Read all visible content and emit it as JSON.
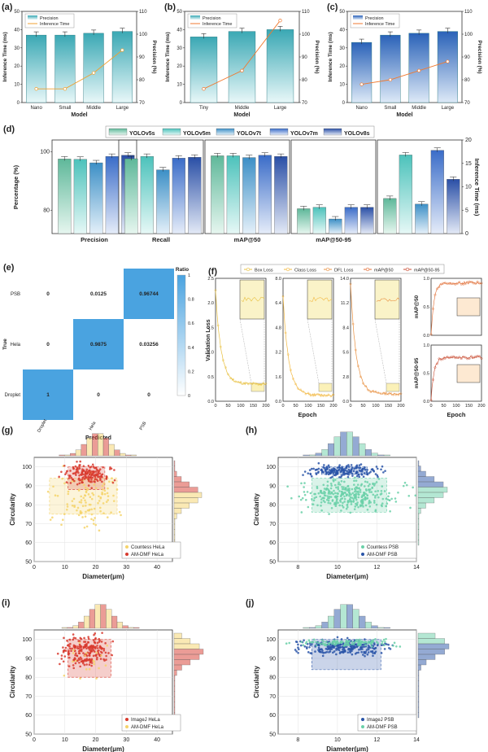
{
  "palette": {
    "bar_blue": "#3d7ec4",
    "bar_teal": "#3aa8b4",
    "bar_light": "#d6eef2",
    "line_orange": "#f0a030",
    "yellow": "#f5d36a",
    "red": "#d83a2e",
    "green": "#6ad0a8",
    "navy": "#2a55a8",
    "heat": "#4aa3e0"
  },
  "panels": {
    "a": {
      "letter": "(a)"
    },
    "b": {
      "letter": "(b)"
    },
    "c": {
      "letter": "(c)"
    },
    "d": {
      "letter": "(d)"
    },
    "e": {
      "letter": "(e)"
    },
    "f": {
      "letter": "(f)"
    },
    "g": {
      "letter": "(g)"
    },
    "h": {
      "letter": "(h)"
    },
    "i": {
      "letter": "(i)"
    },
    "j": {
      "letter": "(j)"
    }
  },
  "chart_data": [
    {
      "id": "a",
      "type": "bar+line",
      "legend": [
        "Precision",
        "Inference Time"
      ],
      "categories": [
        "Nano",
        "Small",
        "Middle",
        "Large"
      ],
      "bars_inference_ms": [
        37,
        37,
        38,
        39
      ],
      "line_precision_pct": [
        76,
        76,
        83,
        93
      ],
      "xlabel": "Model",
      "ylabel": "Inference Time (ms)",
      "ylabel2": "Precision (%)",
      "ylim": [
        0,
        50
      ],
      "ylim2": [
        70,
        110
      ],
      "yticks": [
        "0",
        "10",
        "20",
        "30",
        "40",
        "50"
      ],
      "yticks2": [
        "70",
        "80",
        "90",
        "100",
        "110"
      ]
    },
    {
      "id": "b",
      "type": "bar+line",
      "legend": [
        "Precision",
        "Inference Time"
      ],
      "categories": [
        "Tiny",
        "Middle",
        "Large"
      ],
      "bars_inference_ms": [
        36,
        39,
        40
      ],
      "line_precision_pct": [
        76,
        84,
        106
      ],
      "xlabel": "Model",
      "ylabel": "Inference Time (ms)",
      "ylabel2": "Precision (%)",
      "ylim": [
        0,
        50
      ],
      "ylim2": [
        70,
        110
      ],
      "yticks": [
        "0",
        "10",
        "20",
        "30",
        "40",
        "50"
      ],
      "yticks2": [
        "70",
        "80",
        "90",
        "100",
        "110"
      ]
    },
    {
      "id": "c",
      "type": "bar+line",
      "legend": [
        "Precision",
        "Inference Time"
      ],
      "categories": [
        "Nano",
        "Small",
        "Middle",
        "Large"
      ],
      "bars_inference_ms": [
        33,
        37,
        38,
        39
      ],
      "line_precision_pct": [
        78,
        80,
        84,
        88
      ],
      "xlabel": "Model",
      "ylabel": "Inference Time (ms)",
      "ylabel2": "Precision (%)",
      "ylim": [
        0,
        50
      ],
      "ylim2": [
        70,
        110
      ],
      "yticks": [
        "0",
        "10",
        "20",
        "30",
        "40",
        "50"
      ],
      "yticks2": [
        "70",
        "80",
        "90",
        "100",
        "110"
      ]
    },
    {
      "id": "d",
      "type": "grouped-bar",
      "legend": [
        "YOLOv5s",
        "YOLOv5m",
        "YOLOv7t",
        "YOLOv7m",
        "YOLOv8s"
      ],
      "groups": [
        "Precision",
        "Recall",
        "mAP@50",
        "mAP@50-95"
      ],
      "values_pct": [
        [
          97.5,
          97.4,
          96.2,
          98.4,
          98.8
        ],
        [
          97.6,
          98.4,
          93.8,
          97.8,
          98.1
        ],
        [
          98.6,
          98.6,
          98.0,
          98.8,
          98.4
        ],
        [
          80.5,
          81.0,
          77.0,
          81.0,
          81.0
        ]
      ],
      "inference_ms": [
        7.5,
        16.8,
        6.3,
        17.8,
        11.6
      ],
      "ylabel": "Percentage (%)",
      "ylabel2": "Inference Time (ms)",
      "ylim": [
        72,
        104
      ],
      "ylim2": [
        0,
        20
      ],
      "yticks": [
        "80",
        "100"
      ],
      "yticks2": [
        "0",
        "5",
        "10",
        "15",
        "20"
      ]
    },
    {
      "id": "e",
      "type": "heatmap",
      "rows": [
        "PSB",
        "Hela",
        "Droplet"
      ],
      "cols": [
        "Droplet",
        "Hela",
        "PSB"
      ],
      "values": [
        [
          "0",
          "0.0125",
          "0.96744"
        ],
        [
          "0",
          "0.9875",
          "0.03256"
        ],
        [
          "1",
          "0",
          "0"
        ]
      ],
      "num": [
        [
          0,
          0.0125,
          0.96744
        ],
        [
          0,
          0.9875,
          0.03256
        ],
        [
          1,
          0,
          0
        ]
      ],
      "xlabel": "Predicted",
      "ylabel": "True",
      "cbar_label": "Ratio",
      "cbar_ticks": [
        "0",
        "0.2",
        "0.4",
        "0.6",
        "0.8",
        "1"
      ]
    },
    {
      "id": "f",
      "type": "line",
      "legend": [
        "Box Loss",
        "Class Loss",
        "DFL Loss",
        "mAP@50",
        "mAP@50-95"
      ],
      "xlabel": "Epoch",
      "ylabel": "Validation Loss",
      "xticks": [
        "0",
        "50",
        "100",
        "150",
        "200"
      ],
      "box_yticks": [
        "0.0",
        "0.5",
        "1.0",
        "1.5",
        "2.0",
        "2.5"
      ],
      "cls_yticks": [
        "0.0",
        "1.6",
        "3.2",
        "4.8",
        "6.4",
        "8.0"
      ],
      "dfl_yticks": [
        "0.0",
        "2.8",
        "5.6",
        "8.4",
        "11.2",
        "14.0"
      ],
      "map50_yticks": [
        "0.0",
        "0.5",
        "1.0"
      ],
      "map5095_yticks": [
        "0.0",
        "0.5",
        "1.0"
      ],
      "map50_label": "mAP@50",
      "map5095_label": "mAP@50-95"
    },
    {
      "id": "g",
      "type": "scatter+hist",
      "legend": [
        "Countess HeLa",
        "AM-DMF HeLa"
      ],
      "xlabel": "Diameter(μm)",
      "ylabel": "Circularity",
      "xticks": [
        "0",
        "10",
        "20",
        "30",
        "40"
      ],
      "yticks": [
        "50",
        "60",
        "70",
        "80",
        "90",
        "100"
      ],
      "xlim": [
        0,
        45
      ],
      "ylim": [
        50,
        105
      ]
    },
    {
      "id": "h",
      "type": "scatter+hist",
      "legend": [
        "Countess PSB",
        "AM-DMF PSB"
      ],
      "xlabel": "Diameter(μm)",
      "ylabel": "Circularity",
      "xticks": [
        "8",
        "10",
        "12",
        "14"
      ],
      "yticks": [
        "50",
        "60",
        "70",
        "80",
        "90",
        "100"
      ],
      "xlim": [
        7,
        14
      ],
      "ylim": [
        50,
        105
      ]
    },
    {
      "id": "i",
      "type": "scatter+hist",
      "legend": [
        "ImageJ HeLa",
        "AM-DMF HeLa"
      ],
      "xlabel": "Diameter(μm)",
      "ylabel": "Circularity",
      "xticks": [
        "0",
        "10",
        "20",
        "30",
        "40"
      ],
      "yticks": [
        "50",
        "60",
        "70",
        "80",
        "90",
        "100"
      ],
      "xlim": [
        0,
        45
      ],
      "ylim": [
        50,
        105
      ]
    },
    {
      "id": "j",
      "type": "scatter+hist",
      "legend": [
        "ImageJ PSB",
        "AM-DMF PSB"
      ],
      "xlabel": "Diameter(μm)",
      "ylabel": "Circularity",
      "xticks": [
        "8",
        "10",
        "12",
        "14"
      ],
      "yticks": [
        "50",
        "60",
        "70",
        "80",
        "90",
        "100"
      ],
      "xlim": [
        7,
        14
      ],
      "ylim": [
        50,
        105
      ]
    }
  ]
}
